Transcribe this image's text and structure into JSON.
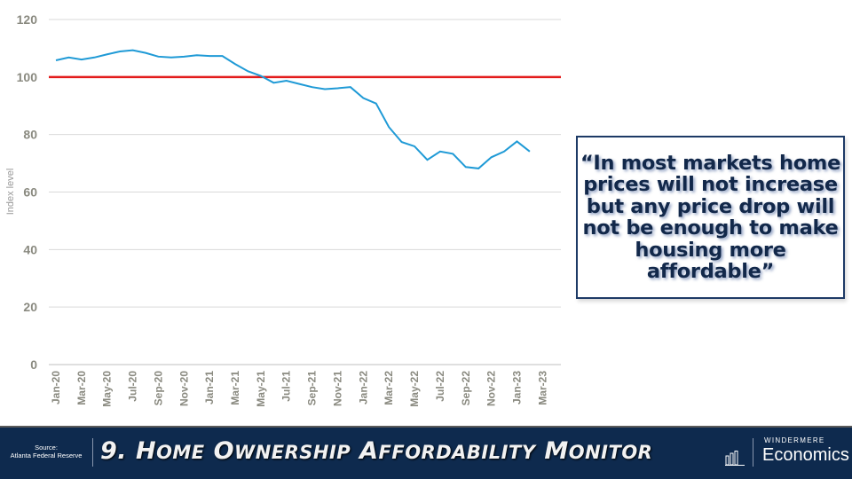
{
  "chart_data": {
    "type": "line",
    "title": "",
    "xlabel": "",
    "ylabel": "Index level",
    "ylim": [
      0,
      120
    ],
    "yticks": [
      "0",
      "20",
      "40",
      "60",
      "80",
      "100",
      "120"
    ],
    "ytick_values": [
      0,
      20,
      40,
      60,
      80,
      100,
      120
    ],
    "xtick_labels": [
      "Jan-20",
      "Mar-20",
      "May-20",
      "Jul-20",
      "Sep-20",
      "Nov-20",
      "Jan-21",
      "Mar-21",
      "May-21",
      "Jul-21",
      "Sep-21",
      "Nov-21",
      "Jan-22",
      "Mar-22",
      "May-22",
      "Jul-22",
      "Sep-22",
      "Nov-22",
      "Jan-23",
      "Mar-23"
    ],
    "grid": true,
    "reference_line": {
      "value": 100,
      "color": "#e31b1b"
    },
    "series": [
      {
        "name": "Index level",
        "color": "#1f9ad6",
        "values": [
          105.8,
          106.8,
          106.1,
          106.8,
          107.9,
          108.9,
          109.3,
          108.4,
          107.1,
          106.8,
          107.1,
          107.6,
          107.3,
          107.3,
          104.5,
          102.0,
          100.4,
          98.0,
          98.7,
          97.6,
          96.5,
          95.8,
          96.1,
          96.5,
          92.7,
          90.8,
          82.6,
          77.4,
          75.9,
          71.2,
          74.1,
          73.3,
          68.7,
          68.2,
          72.1,
          74.1,
          77.6,
          74.1
        ]
      }
    ]
  },
  "quote": "“In most markets home prices will not increase but any price drop will not be enough to make housing more affordable”",
  "footer": {
    "source_label": "Source:",
    "source_name": "Atlanta Federal Reserve",
    "title_number": "9. ",
    "title_words": [
      [
        "H",
        "OME"
      ],
      [
        "O",
        "WNERSHIP"
      ],
      [
        "A",
        "FFORDABILITY"
      ],
      [
        "M",
        "ONITOR"
      ]
    ],
    "brand_top": "WINDERMERE",
    "brand": "Economics"
  }
}
